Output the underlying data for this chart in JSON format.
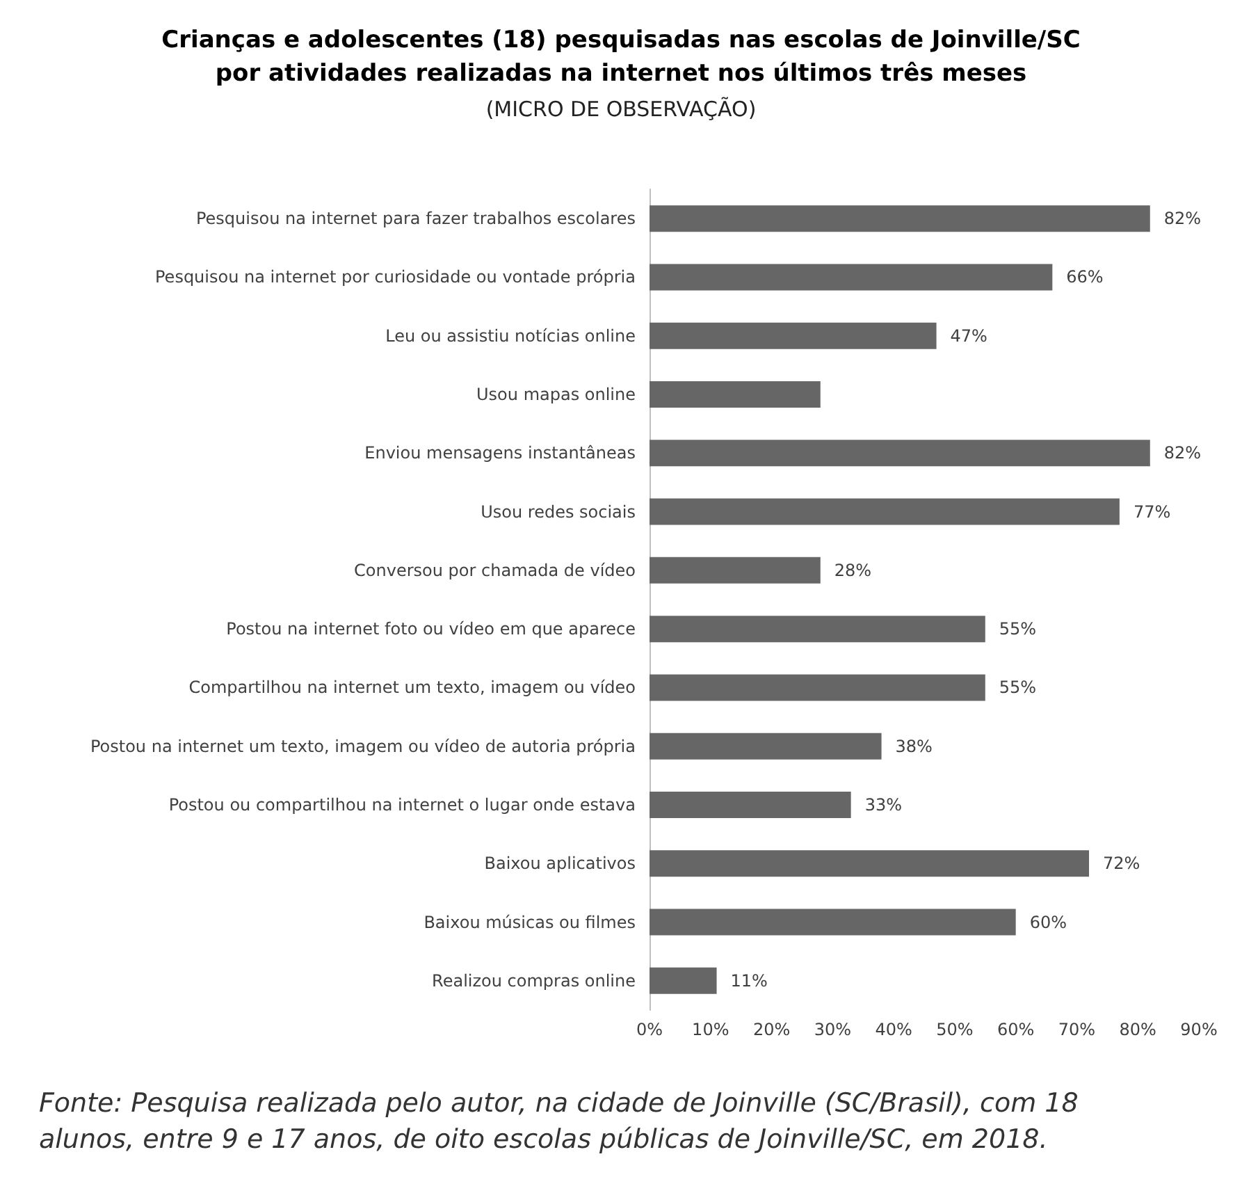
{
  "chart_data": {
    "type": "bar",
    "orientation": "horizontal",
    "title": "Crianças e adolescentes (18) pesquisadas nas escolas de Joinville/SC\npor atividades realizadas na internet nos últimos três meses",
    "subtitle": "(MICRO DE OBSERVAÇÃO)",
    "categories": [
      "Pesquisou na internet para fazer trabalhos escolares",
      "Pesquisou na internet por curiosidade ou vontade própria",
      "Leu ou assistiu notícias online",
      "Usou mapas online",
      "Enviou mensagens instantâneas",
      "Usou redes sociais",
      "Conversou por chamada de vídeo",
      "Postou na internet foto ou vídeo em que aparece",
      "Compartilhou na internet um texto, imagem ou vídeo",
      "Postou na internet um texto, imagem ou vídeo de autoria própria",
      "Postou ou compartilhou na internet o lugar onde estava",
      "Baixou aplicativos",
      "Baixou músicas ou filmes",
      "Realizou compras online"
    ],
    "values": [
      82,
      66,
      47,
      28,
      82,
      77,
      28,
      55,
      55,
      38,
      33,
      72,
      60,
      11
    ],
    "value_labels": [
      "82%",
      "66%",
      "47%",
      null,
      "82%",
      "77%",
      "28%",
      "55%",
      "55%",
      "38%",
      "33%",
      "72%",
      "60%",
      "11%"
    ],
    "color": "#666666",
    "xlim": [
      0,
      90
    ],
    "xticks": [
      {
        "value": 0,
        "label": "0%"
      },
      {
        "value": 10,
        "label": "10%"
      },
      {
        "value": 20,
        "label": "20%"
      },
      {
        "value": 30,
        "label": "30%"
      },
      {
        "value": 40,
        "label": "40%"
      },
      {
        "value": 50,
        "label": "50%"
      },
      {
        "value": 60,
        "label": "60%"
      },
      {
        "value": 70,
        "label": "70%"
      },
      {
        "value": 80,
        "label": "80%"
      },
      {
        "value": 90,
        "label": "90%"
      }
    ],
    "annotations": [
      "Fonte: Pesquisa realizada pelo autor, na cidade de Joinville (SC/Brasil), com 18\nalunos, entre 9 e 17 anos, de oito escolas públicas de Joinville/SC, em 2018."
    ]
  }
}
